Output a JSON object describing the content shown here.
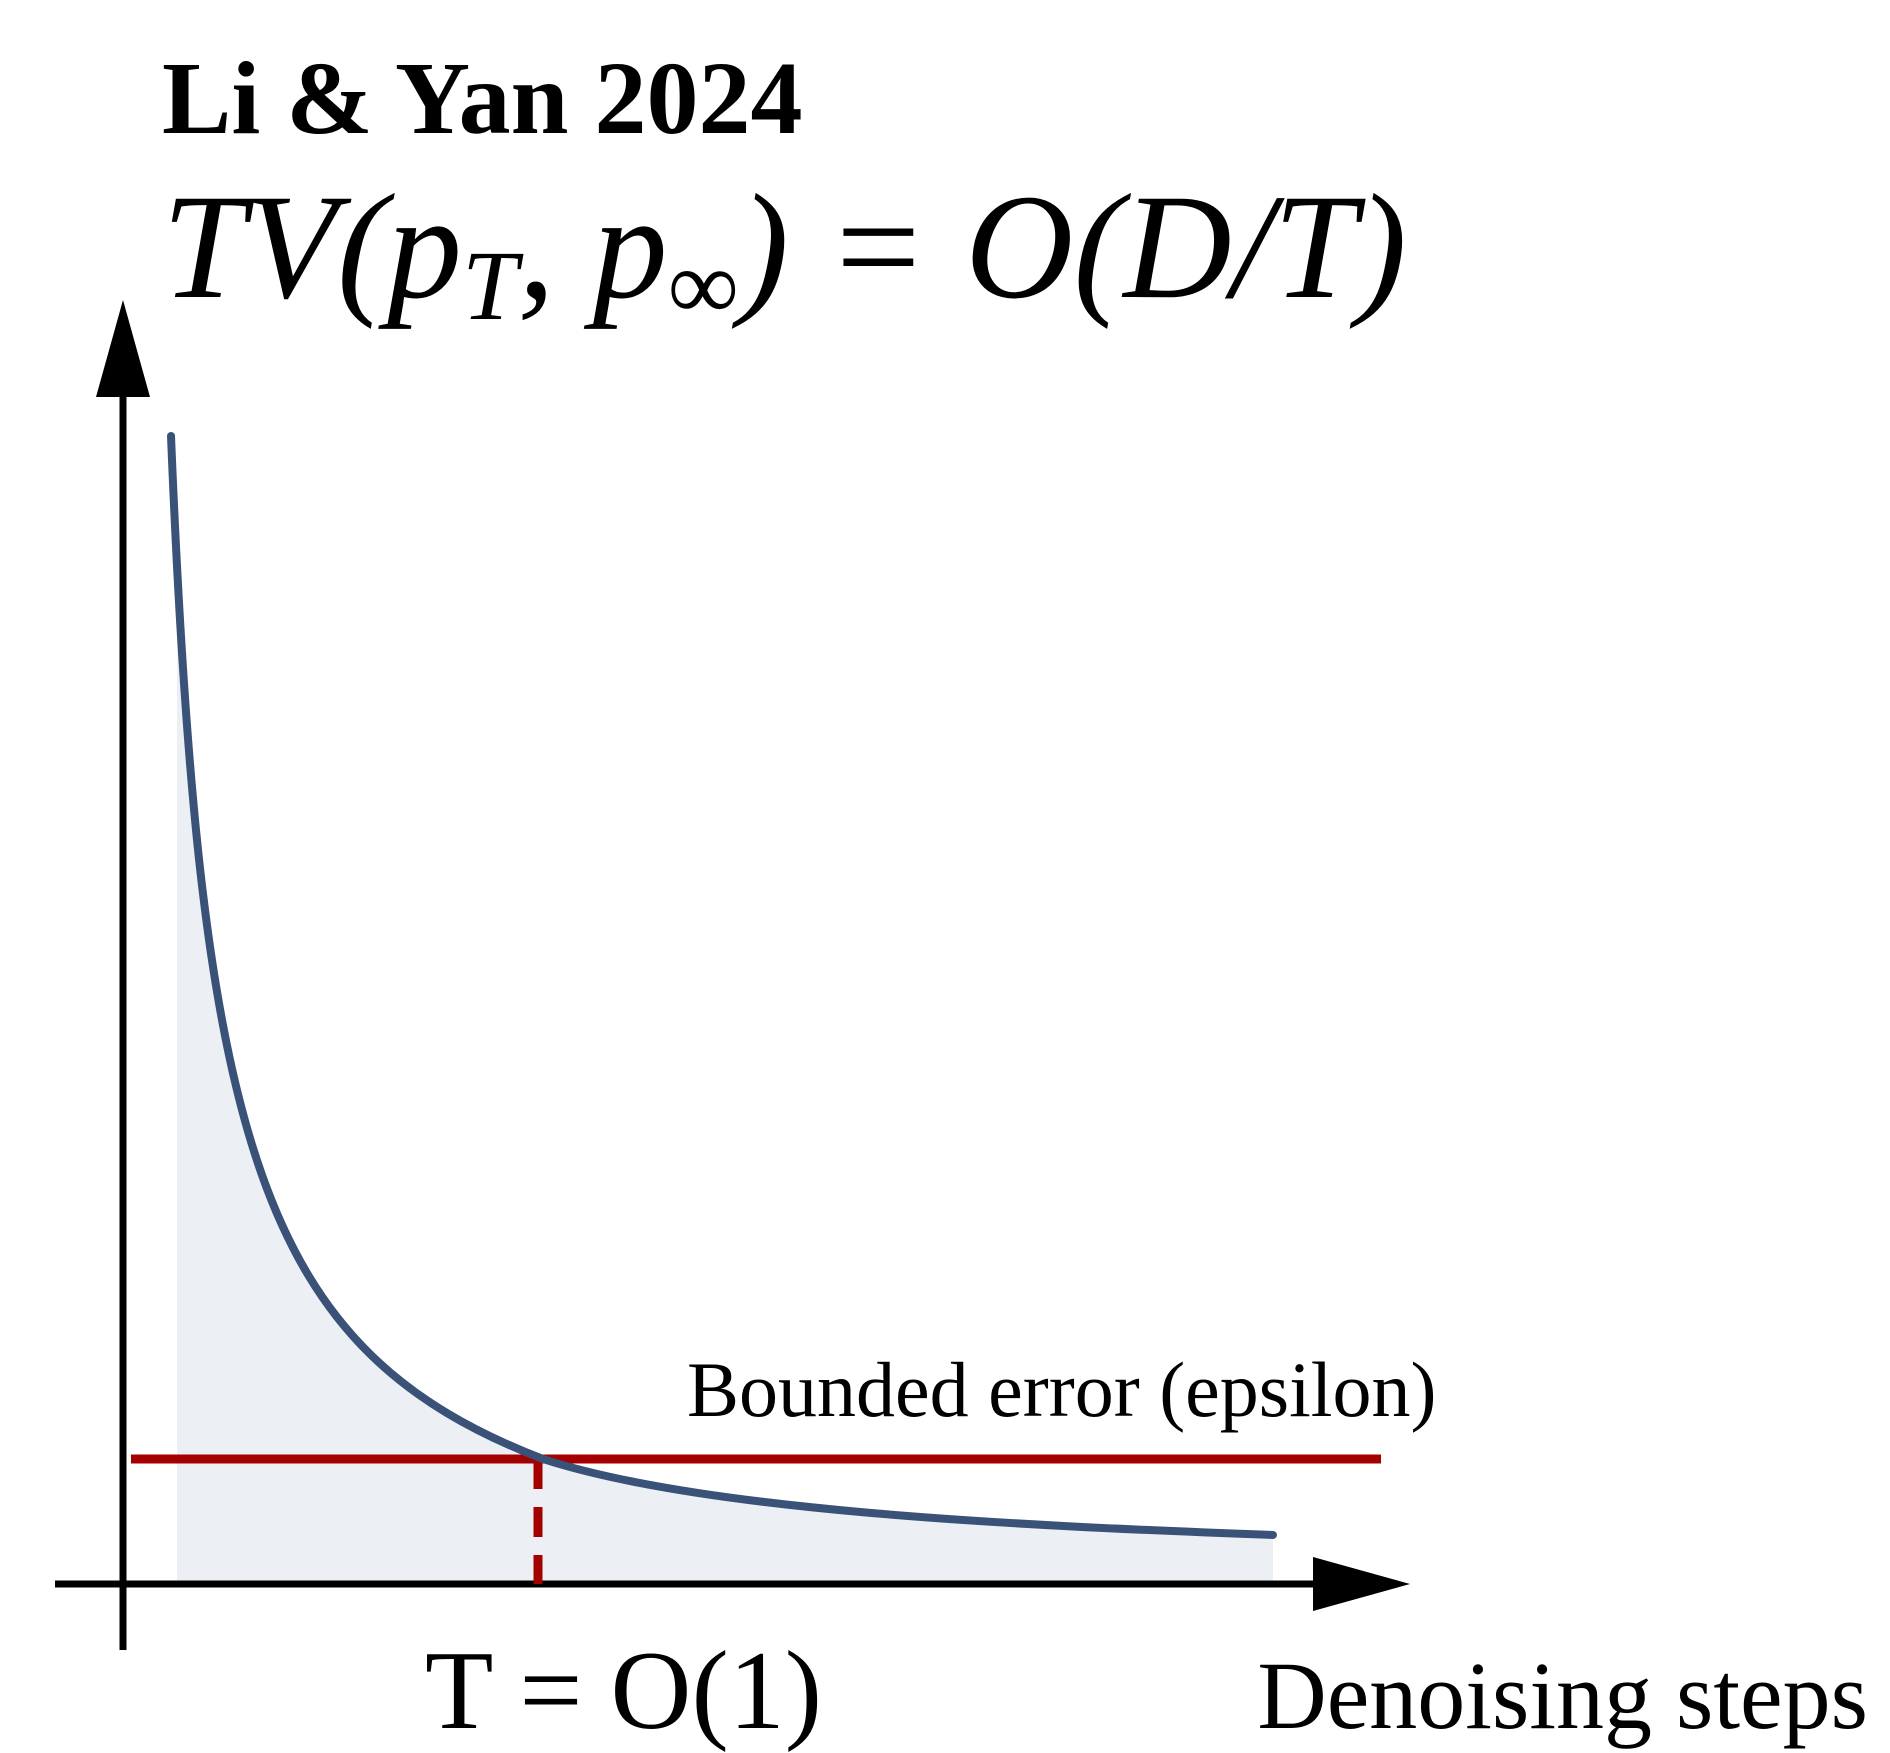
{
  "header": {
    "title": "Li & Yan 2024",
    "formula": [
      "TV(p",
      "T",
      ", p",
      "∞",
      ") = O(D/T)"
    ]
  },
  "annotations": {
    "threshold": "Bounded error (epsilon)",
    "crossing": "T = O(1)",
    "x_axis": "Denoising steps"
  }
}
